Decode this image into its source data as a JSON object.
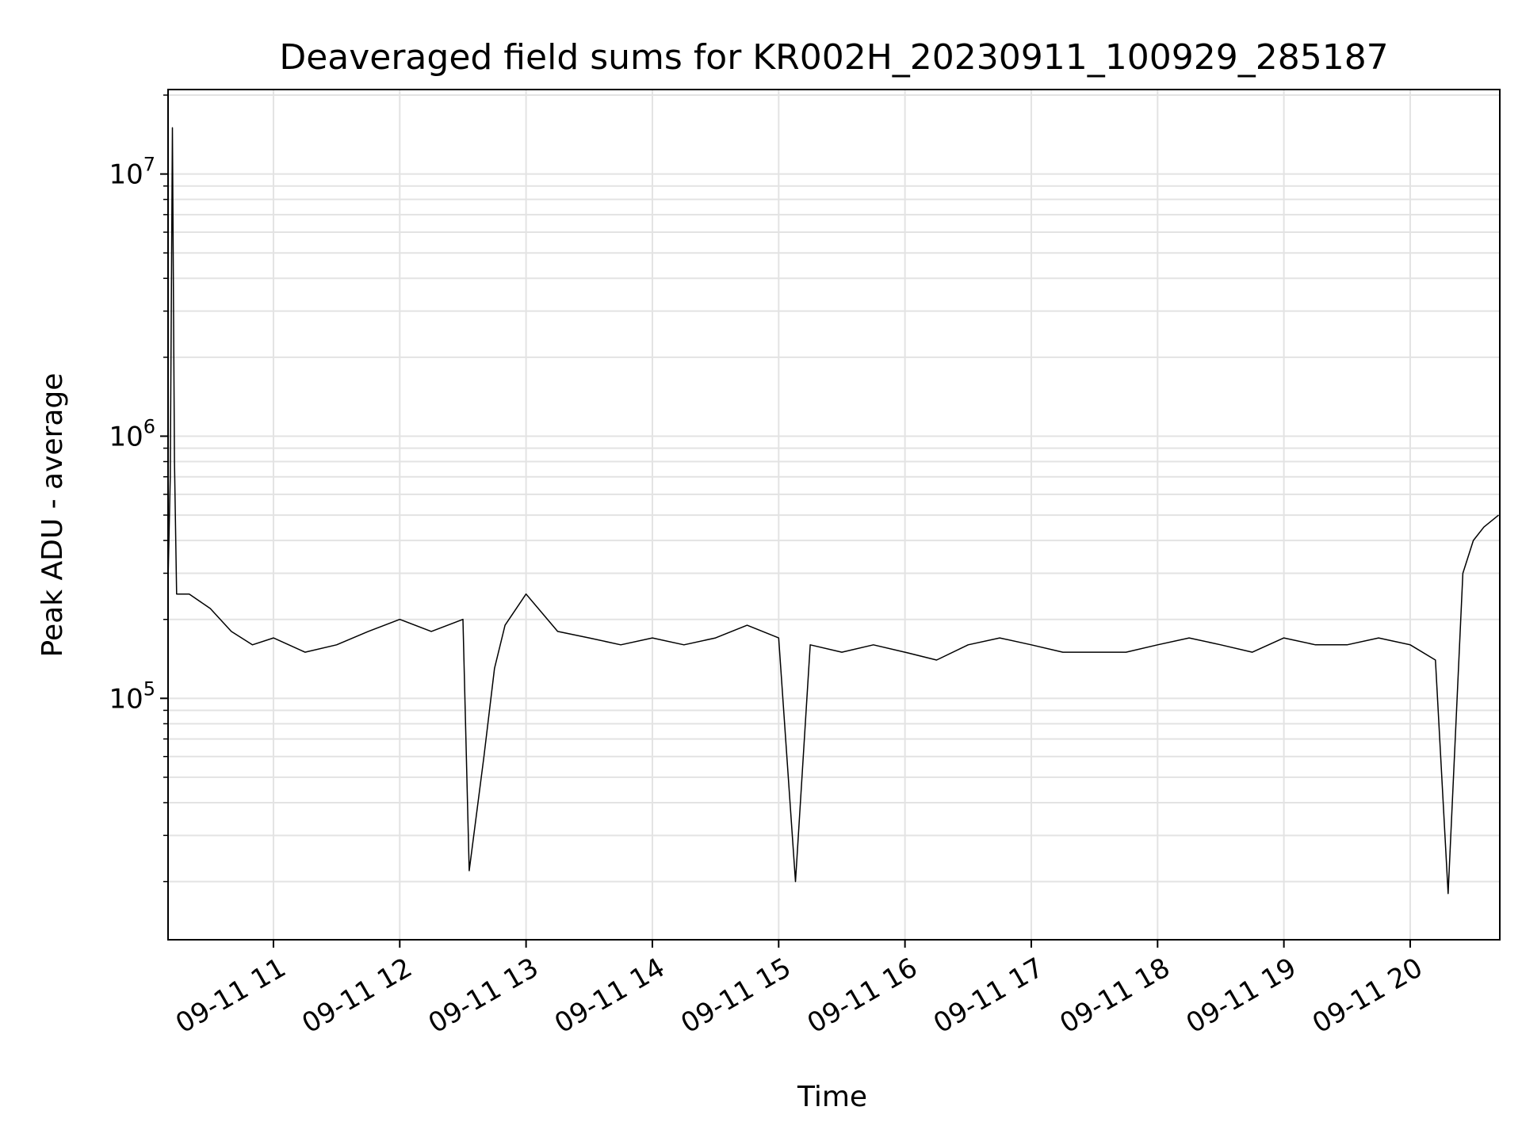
{
  "chart_data": {
    "type": "line",
    "title": "Deaveraged field sums for KR002H_20230911_100929_285187",
    "xlabel": "Time",
    "ylabel": "Peak ADU - average",
    "y_scale": "log",
    "ylim": [
      12000,
      21000000
    ],
    "xlim": [
      "2023-09-11 10:09:56",
      "2023-09-11 20:42:34"
    ],
    "x_ticks": [
      {
        "value": "2023-09-11 11:00",
        "label": "09-11 11"
      },
      {
        "value": "2023-09-11 12:00",
        "label": "09-11 12"
      },
      {
        "value": "2023-09-11 13:00",
        "label": "09-11 13"
      },
      {
        "value": "2023-09-11 14:00",
        "label": "09-11 14"
      },
      {
        "value": "2023-09-11 15:00",
        "label": "09-11 15"
      },
      {
        "value": "2023-09-11 16:00",
        "label": "09-11 16"
      },
      {
        "value": "2023-09-11 17:00",
        "label": "09-11 17"
      },
      {
        "value": "2023-09-11 18:00",
        "label": "09-11 18"
      },
      {
        "value": "2023-09-11 19:00",
        "label": "09-11 19"
      },
      {
        "value": "2023-09-11 20:00",
        "label": "09-11 20"
      }
    ],
    "y_ticks": [
      {
        "value": 100000,
        "base": "10",
        "exp": "5"
      },
      {
        "value": 1000000,
        "base": "10",
        "exp": "6"
      },
      {
        "value": 10000000,
        "base": "10",
        "exp": "7"
      }
    ],
    "grid": true,
    "line_color": "#000000",
    "series": [
      {
        "x": [
          "2023-09-11 10:10",
          "2023-09-11 10:11",
          "2023-09-11 10:12",
          "2023-09-11 10:13",
          "2023-09-11 10:14",
          "2023-09-11 10:20",
          "2023-09-11 10:30",
          "2023-09-11 10:40",
          "2023-09-11 10:50",
          "2023-09-11 11:00",
          "2023-09-11 11:15",
          "2023-09-11 11:30",
          "2023-09-11 11:45",
          "2023-09-11 12:00",
          "2023-09-11 12:15",
          "2023-09-11 12:30",
          "2023-09-11 12:33",
          "2023-09-11 12:40",
          "2023-09-11 12:45",
          "2023-09-11 12:50",
          "2023-09-11 13:00",
          "2023-09-11 13:15",
          "2023-09-11 13:30",
          "2023-09-11 13:45",
          "2023-09-11 14:00",
          "2023-09-11 14:15",
          "2023-09-11 14:30",
          "2023-09-11 14:45",
          "2023-09-11 15:00",
          "2023-09-11 15:08",
          "2023-09-11 15:15",
          "2023-09-11 15:30",
          "2023-09-11 15:45",
          "2023-09-11 16:00",
          "2023-09-11 16:15",
          "2023-09-11 16:30",
          "2023-09-11 16:45",
          "2023-09-11 17:00",
          "2023-09-11 17:15",
          "2023-09-11 17:30",
          "2023-09-11 17:45",
          "2023-09-11 18:00",
          "2023-09-11 18:15",
          "2023-09-11 18:30",
          "2023-09-11 18:45",
          "2023-09-11 19:00",
          "2023-09-11 19:15",
          "2023-09-11 19:30",
          "2023-09-11 19:45",
          "2023-09-11 20:00",
          "2023-09-11 20:12",
          "2023-09-11 20:18",
          "2023-09-11 20:25",
          "2023-09-11 20:30",
          "2023-09-11 20:35",
          "2023-09-11 20:42"
        ],
        "y": [
          300000,
          700000,
          15000000,
          800000,
          250000,
          250000,
          220000,
          180000,
          160000,
          170000,
          150000,
          160000,
          180000,
          200000,
          180000,
          200000,
          22000,
          60000,
          130000,
          190000,
          250000,
          180000,
          170000,
          160000,
          170000,
          160000,
          170000,
          190000,
          170000,
          20000,
          160000,
          150000,
          160000,
          150000,
          140000,
          160000,
          170000,
          160000,
          150000,
          150000,
          150000,
          160000,
          170000,
          160000,
          150000,
          170000,
          160000,
          160000,
          170000,
          160000,
          140000,
          18000,
          300000,
          400000,
          450000,
          500000
        ]
      }
    ]
  }
}
